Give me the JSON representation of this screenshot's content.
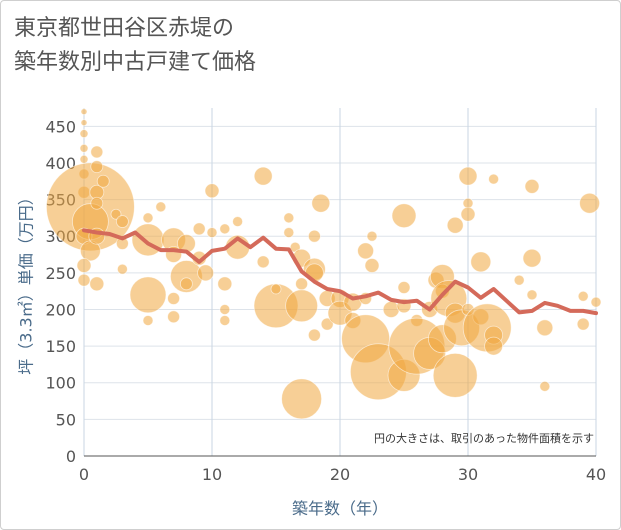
{
  "title_line1": "東京都世田谷区赤堤の",
  "title_line2": "築年数別中古戸建て価格",
  "chart_data": {
    "type": "scatter",
    "xlabel": "築年数（年）",
    "ylabel": "坪（3.3㎡）単価（万円）",
    "xlim": [
      0,
      40
    ],
    "ylim": [
      0,
      475
    ],
    "xticks": [
      "0",
      "10",
      "20",
      "30",
      "40"
    ],
    "yticks": [
      "0",
      "50",
      "100",
      "150",
      "200",
      "250",
      "300",
      "350",
      "400",
      "450"
    ],
    "note": "円の大きさは、取引のあった物件面積を示す",
    "bubble_color": "#f0a840",
    "line_color": "#d46a5a",
    "grid": true,
    "series": [
      {
        "values": [
          {
            "x": 0,
            "y": 470,
            "size": 3
          },
          {
            "x": 0,
            "y": 455,
            "size": 3
          },
          {
            "x": 0,
            "y": 440,
            "size": 4
          },
          {
            "x": 0,
            "y": 420,
            "size": 4
          },
          {
            "x": 0,
            "y": 405,
            "size": 4
          },
          {
            "x": 0,
            "y": 385,
            "size": 5
          },
          {
            "x": 0,
            "y": 360,
            "size": 6
          },
          {
            "x": 0.5,
            "y": 340,
            "size": 44
          },
          {
            "x": 0.5,
            "y": 320,
            "size": 18
          },
          {
            "x": 0,
            "y": 300,
            "size": 8
          },
          {
            "x": 0.5,
            "y": 280,
            "size": 10
          },
          {
            "x": 0,
            "y": 260,
            "size": 7
          },
          {
            "x": 0,
            "y": 240,
            "size": 6
          },
          {
            "x": 1,
            "y": 415,
            "size": 6
          },
          {
            "x": 1,
            "y": 395,
            "size": 6
          },
          {
            "x": 1,
            "y": 360,
            "size": 7
          },
          {
            "x": 1,
            "y": 345,
            "size": 6
          },
          {
            "x": 1,
            "y": 300,
            "size": 8
          },
          {
            "x": 1,
            "y": 235,
            "size": 7
          },
          {
            "x": 1.5,
            "y": 375,
            "size": 6
          },
          {
            "x": 2.5,
            "y": 330,
            "size": 5
          },
          {
            "x": 3,
            "y": 320,
            "size": 6
          },
          {
            "x": 3,
            "y": 290,
            "size": 6
          },
          {
            "x": 3,
            "y": 255,
            "size": 5
          },
          {
            "x": 5,
            "y": 325,
            "size": 5
          },
          {
            "x": 5,
            "y": 295,
            "size": 16
          },
          {
            "x": 5,
            "y": 220,
            "size": 18
          },
          {
            "x": 5,
            "y": 185,
            "size": 5
          },
          {
            "x": 6,
            "y": 340,
            "size": 5
          },
          {
            "x": 7,
            "y": 295,
            "size": 12
          },
          {
            "x": 7,
            "y": 275,
            "size": 8
          },
          {
            "x": 7,
            "y": 215,
            "size": 6
          },
          {
            "x": 7,
            "y": 190,
            "size": 6
          },
          {
            "x": 8,
            "y": 290,
            "size": 9
          },
          {
            "x": 8,
            "y": 245,
            "size": 16
          },
          {
            "x": 8,
            "y": 235,
            "size": 6
          },
          {
            "x": 9,
            "y": 310,
            "size": 6
          },
          {
            "x": 9,
            "y": 270,
            "size": 7
          },
          {
            "x": 9.5,
            "y": 250,
            "size": 8
          },
          {
            "x": 10,
            "y": 362,
            "size": 7
          },
          {
            "x": 10,
            "y": 305,
            "size": 5
          },
          {
            "x": 11,
            "y": 310,
            "size": 5
          },
          {
            "x": 11,
            "y": 235,
            "size": 7
          },
          {
            "x": 11,
            "y": 200,
            "size": 5
          },
          {
            "x": 11,
            "y": 185,
            "size": 5
          },
          {
            "x": 12,
            "y": 320,
            "size": 5
          },
          {
            "x": 12,
            "y": 285,
            "size": 12
          },
          {
            "x": 14,
            "y": 382,
            "size": 9
          },
          {
            "x": 14,
            "y": 265,
            "size": 6
          },
          {
            "x": 15,
            "y": 205,
            "size": 22
          },
          {
            "x": 15,
            "y": 228,
            "size": 5
          },
          {
            "x": 16,
            "y": 325,
            "size": 5
          },
          {
            "x": 16,
            "y": 305,
            "size": 5
          },
          {
            "x": 16.5,
            "y": 285,
            "size": 5
          },
          {
            "x": 17,
            "y": 270,
            "size": 9
          },
          {
            "x": 17,
            "y": 235,
            "size": 6
          },
          {
            "x": 17,
            "y": 205,
            "size": 16
          },
          {
            "x": 17,
            "y": 78,
            "size": 20
          },
          {
            "x": 18,
            "y": 300,
            "size": 6
          },
          {
            "x": 18,
            "y": 255,
            "size": 11
          },
          {
            "x": 18,
            "y": 250,
            "size": 9
          },
          {
            "x": 18,
            "y": 165,
            "size": 6
          },
          {
            "x": 18.5,
            "y": 345,
            "size": 9
          },
          {
            "x": 19,
            "y": 215,
            "size": 8
          },
          {
            "x": 19,
            "y": 180,
            "size": 6
          },
          {
            "x": 20,
            "y": 215,
            "size": 9
          },
          {
            "x": 20,
            "y": 195,
            "size": 12
          },
          {
            "x": 21,
            "y": 210,
            "size": 9
          },
          {
            "x": 21,
            "y": 185,
            "size": 8
          },
          {
            "x": 22,
            "y": 280,
            "size": 8
          },
          {
            "x": 22,
            "y": 215,
            "size": 6
          },
          {
            "x": 22,
            "y": 160,
            "size": 24
          },
          {
            "x": 22.5,
            "y": 300,
            "size": 5
          },
          {
            "x": 22.5,
            "y": 260,
            "size": 7
          },
          {
            "x": 23,
            "y": 115,
            "size": 28
          },
          {
            "x": 24,
            "y": 200,
            "size": 8
          },
          {
            "x": 25,
            "y": 328,
            "size": 12
          },
          {
            "x": 25,
            "y": 230,
            "size": 6
          },
          {
            "x": 25,
            "y": 205,
            "size": 7
          },
          {
            "x": 25,
            "y": 110,
            "size": 16
          },
          {
            "x": 26,
            "y": 185,
            "size": 6
          },
          {
            "x": 26,
            "y": 150,
            "size": 28
          },
          {
            "x": 27,
            "y": 200,
            "size": 8
          },
          {
            "x": 27,
            "y": 140,
            "size": 16
          },
          {
            "x": 27.5,
            "y": 240,
            "size": 8
          },
          {
            "x": 28,
            "y": 245,
            "size": 12
          },
          {
            "x": 28,
            "y": 225,
            "size": 7
          },
          {
            "x": 28,
            "y": 160,
            "size": 14
          },
          {
            "x": 28.5,
            "y": 215,
            "size": 18
          },
          {
            "x": 29,
            "y": 315,
            "size": 8
          },
          {
            "x": 29,
            "y": 195,
            "size": 10
          },
          {
            "x": 29,
            "y": 110,
            "size": 22
          },
          {
            "x": 29.5,
            "y": 175,
            "size": 18
          },
          {
            "x": 30,
            "y": 382,
            "size": 9
          },
          {
            "x": 30,
            "y": 345,
            "size": 5
          },
          {
            "x": 30,
            "y": 330,
            "size": 7
          },
          {
            "x": 30,
            "y": 200,
            "size": 6
          },
          {
            "x": 31,
            "y": 265,
            "size": 10
          },
          {
            "x": 31,
            "y": 190,
            "size": 8
          },
          {
            "x": 31.5,
            "y": 175,
            "size": 24
          },
          {
            "x": 32,
            "y": 378,
            "size": 5
          },
          {
            "x": 32,
            "y": 165,
            "size": 9
          },
          {
            "x": 32,
            "y": 150,
            "size": 9
          },
          {
            "x": 34,
            "y": 240,
            "size": 5
          },
          {
            "x": 35,
            "y": 368,
            "size": 7
          },
          {
            "x": 35,
            "y": 270,
            "size": 9
          },
          {
            "x": 35,
            "y": 220,
            "size": 5
          },
          {
            "x": 36,
            "y": 175,
            "size": 8
          },
          {
            "x": 36,
            "y": 95,
            "size": 5
          },
          {
            "x": 39,
            "y": 180,
            "size": 6
          },
          {
            "x": 39,
            "y": 218,
            "size": 5
          },
          {
            "x": 39.5,
            "y": 345,
            "size": 10
          },
          {
            "x": 40,
            "y": 210,
            "size": 5
          }
        ]
      },
      {
        "type": "line",
        "x": [
          0,
          1,
          2,
          3,
          4,
          5,
          6,
          7,
          8,
          9,
          10,
          11,
          12,
          13,
          14,
          15,
          16,
          17,
          18,
          19,
          20,
          21,
          22,
          23,
          24,
          25,
          26,
          27,
          28,
          29,
          30,
          31,
          32,
          33,
          34,
          35,
          36,
          37,
          38,
          39,
          40
        ],
        "y": [
          308,
          305,
          303,
          297,
          305,
          290,
          281,
          281,
          279,
          265,
          280,
          283,
          297,
          285,
          298,
          283,
          282,
          252,
          238,
          228,
          225,
          215,
          218,
          223,
          213,
          210,
          212,
          200,
          220,
          238,
          230,
          216,
          228,
          212,
          196,
          198,
          209,
          205,
          198,
          198,
          195
        ]
      }
    ]
  }
}
